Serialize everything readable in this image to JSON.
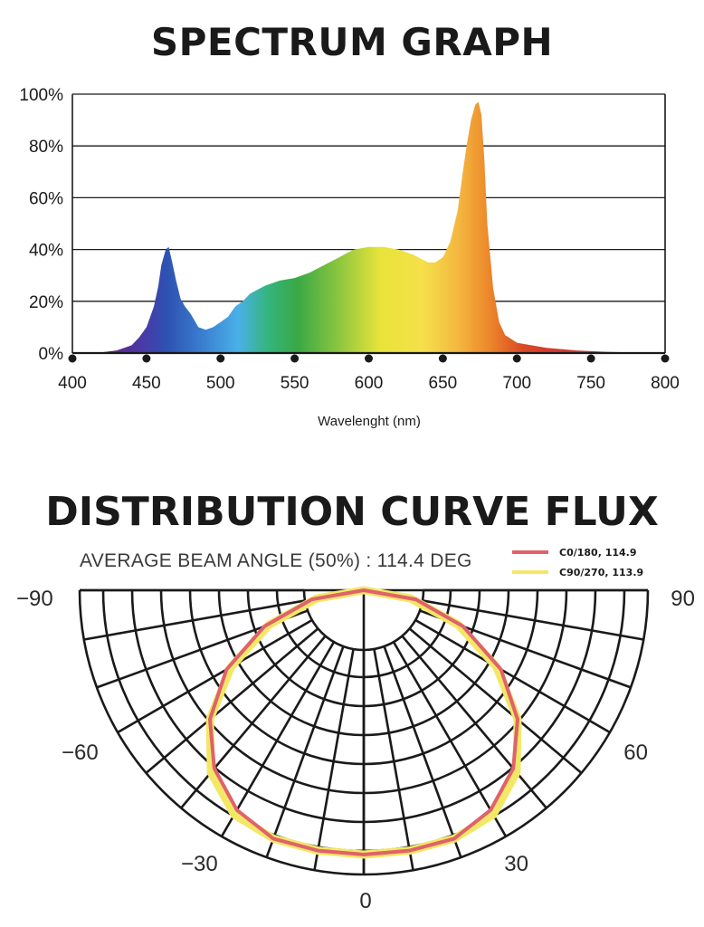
{
  "chart_data": [
    {
      "type": "area",
      "title": "SPECTRUM GRAPH",
      "xlabel": "Wavelenght (nm)",
      "ylabel": "",
      "xlim": [
        400,
        800
      ],
      "ylim": [
        0,
        100
      ],
      "x_ticks": [
        "400",
        "450",
        "500",
        "550",
        "600",
        "650",
        "700",
        "750",
        "800"
      ],
      "y_ticks": [
        "0%",
        "20%",
        "40%",
        "60%",
        "80%",
        "100%"
      ],
      "grid": true,
      "series": [
        {
          "x": [
            400,
            420,
            430,
            440,
            445,
            450,
            455,
            458,
            460,
            463,
            465,
            467,
            470,
            473,
            476,
            480,
            485,
            490,
            495,
            500,
            505,
            510,
            515,
            520,
            530,
            540,
            550,
            560,
            570,
            580,
            590,
            600,
            610,
            620,
            630,
            640,
            645,
            650,
            655,
            660,
            663,
            666,
            669,
            672,
            674,
            676,
            678,
            680,
            684,
            688,
            692,
            700,
            720,
            740,
            760,
            780,
            800
          ],
          "y": [
            0,
            0.3,
            1,
            3,
            6,
            10,
            18,
            26,
            34,
            40,
            41,
            36,
            28,
            21,
            18,
            15,
            10,
            9,
            10,
            12,
            14,
            18,
            20,
            23,
            26,
            28,
            29,
            31,
            34,
            37,
            40,
            41,
            41,
            40,
            38,
            35,
            35,
            37,
            43,
            55,
            68,
            80,
            90,
            96,
            97,
            92,
            75,
            50,
            25,
            12,
            7,
            4,
            2,
            1,
            0.5,
            0.2,
            0
          ]
        }
      ]
    },
    {
      "type": "polar",
      "title": "DISTRIBUTION CURVE FLUX",
      "subtitle": "AVERAGE BEAM ANGLE  (50%) : 114.4 DEG",
      "angle_labels": [
        "-90",
        "90",
        "-60",
        "60",
        "-30",
        "30",
        "0"
      ],
      "angle_range": [
        -90,
        90
      ],
      "series": [
        {
          "name": "C0/180, 114.9",
          "color": "#e0626a",
          "angles": [
            -90,
            -80,
            -70,
            -60,
            -50,
            -40,
            -30,
            -20,
            -10,
            0,
            10,
            20,
            30,
            40,
            50,
            60,
            70,
            80,
            90
          ],
          "values": [
            0,
            20,
            40,
            60,
            76,
            88,
            96,
            100,
            100,
            100,
            100,
            100,
            96,
            88,
            76,
            60,
            40,
            20,
            0
          ]
        },
        {
          "name": "C90/270, 113.9",
          "color": "#f2e866",
          "angles": [
            -90,
            -80,
            -70,
            -60,
            -50,
            -40,
            -30,
            -20,
            -10,
            0,
            10,
            20,
            30,
            40,
            50,
            60,
            70,
            80,
            90
          ],
          "values": [
            0,
            18,
            38,
            58,
            76,
            90,
            98,
            100,
            100,
            100,
            100,
            100,
            98,
            90,
            76,
            58,
            38,
            18,
            0
          ]
        }
      ]
    }
  ]
}
